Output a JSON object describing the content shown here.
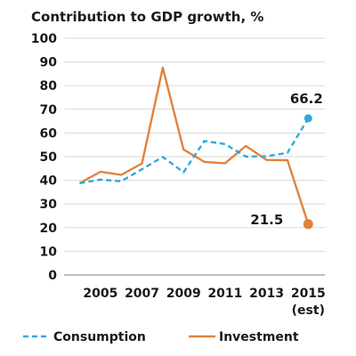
{
  "chart_data": {
    "type": "line",
    "title": "Contribution to GDP growth, %",
    "x": [
      2004,
      2005,
      2006,
      2007,
      2008,
      2009,
      2010,
      2011,
      2012,
      2013,
      2014,
      2015
    ],
    "x_tick_labels": [
      "2005",
      "2007",
      "2009",
      "2011",
      "2013",
      "2015"
    ],
    "x_tick_values": [
      2005,
      2007,
      2009,
      2011,
      2013,
      2015
    ],
    "x_tick_sublabel": "(est)",
    "ylim": [
      0,
      100
    ],
    "y_ticks": [
      0,
      10,
      20,
      30,
      40,
      50,
      60,
      70,
      80,
      90,
      100
    ],
    "grid": true,
    "legend": "bottom",
    "series": [
      {
        "name": "Consumption",
        "color": "#2ea9df",
        "style": "dashed",
        "values": [
          38.8,
          40.3,
          39.6,
          44.7,
          49.9,
          43.4,
          56.6,
          55.3,
          50.0,
          50.2,
          51.6,
          66.2
        ],
        "end_label": "66.2"
      },
      {
        "name": "Investment",
        "color": "#e0823d",
        "style": "solid",
        "values": [
          38.8,
          43.6,
          42.3,
          47.1,
          87.6,
          53.0,
          47.8,
          47.2,
          54.5,
          48.6,
          48.5,
          21.5
        ],
        "end_label": "21.5"
      }
    ]
  }
}
